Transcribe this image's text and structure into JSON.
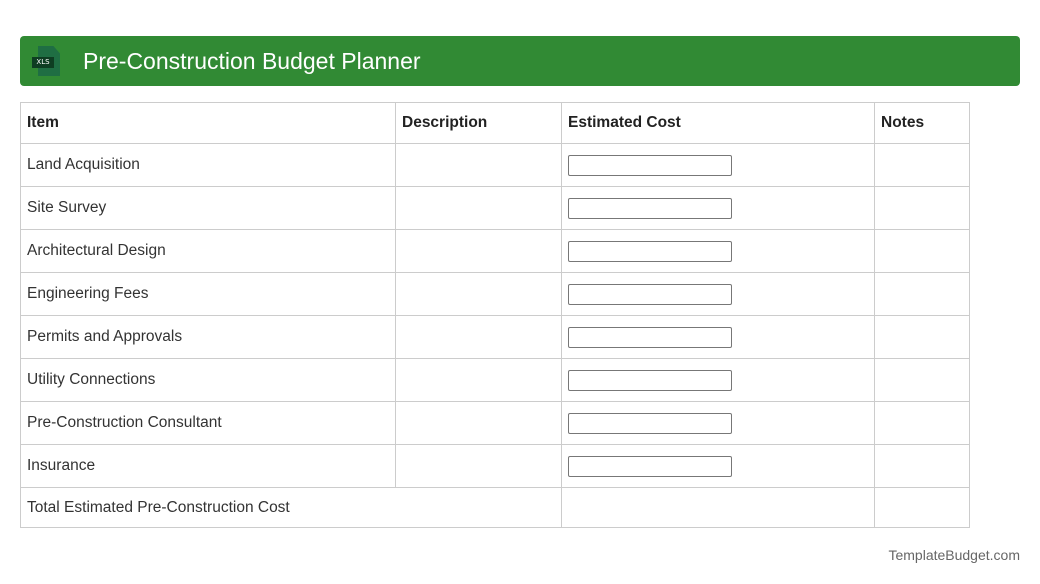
{
  "header": {
    "title": "Pre-Construction Budget Planner",
    "icon": "xls-file-icon",
    "icon_label": "XLS",
    "color": "#318a34"
  },
  "table": {
    "columns": [
      "Item",
      "Description",
      "Estimated Cost",
      "Notes"
    ],
    "rows": [
      {
        "item": "Land Acquisition",
        "description": "",
        "estimated_cost": "",
        "notes": ""
      },
      {
        "item": "Site Survey",
        "description": "",
        "estimated_cost": "",
        "notes": ""
      },
      {
        "item": "Architectural Design",
        "description": "",
        "estimated_cost": "",
        "notes": ""
      },
      {
        "item": "Engineering Fees",
        "description": "",
        "estimated_cost": "",
        "notes": ""
      },
      {
        "item": "Permits and Approvals",
        "description": "",
        "estimated_cost": "",
        "notes": ""
      },
      {
        "item": "Utility Connections",
        "description": "",
        "estimated_cost": "",
        "notes": ""
      },
      {
        "item": "Pre-Construction Consultant",
        "description": "",
        "estimated_cost": "",
        "notes": ""
      },
      {
        "item": "Insurance",
        "description": "",
        "estimated_cost": "",
        "notes": ""
      }
    ],
    "total_label": "Total Estimated Pre-Construction Cost"
  },
  "footer": {
    "brand": "TemplateBudget.com"
  }
}
